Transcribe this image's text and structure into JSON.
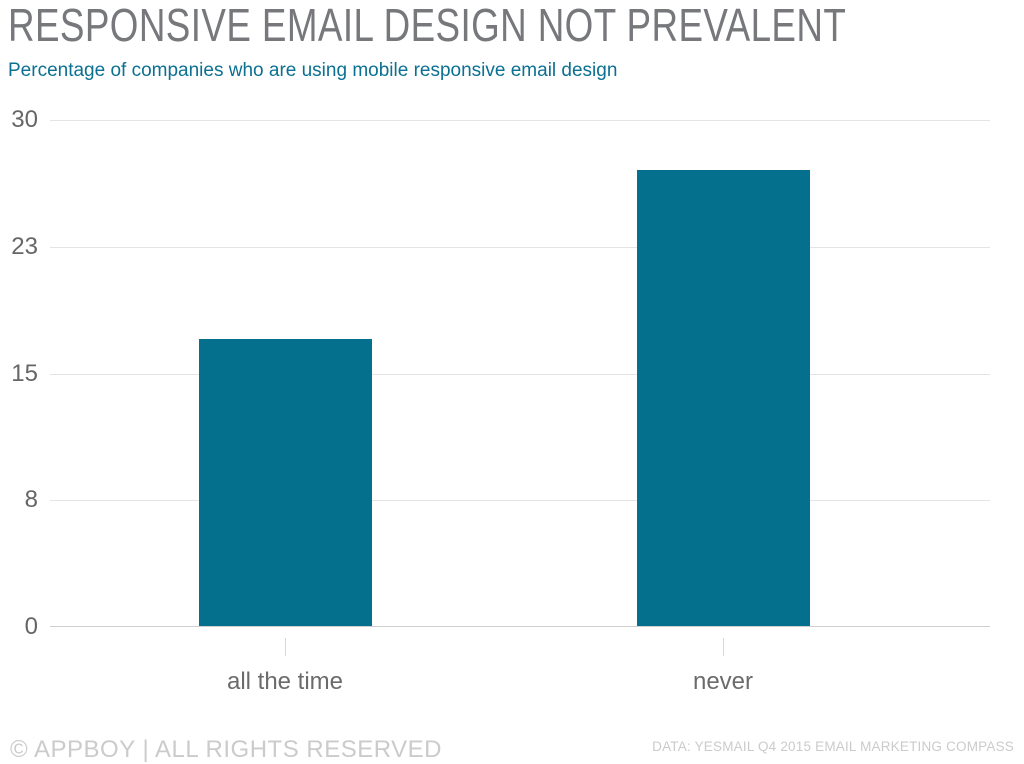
{
  "header": {
    "title": "RESPONSIVE EMAIL DESIGN NOT PREVALENT",
    "subtitle": "Percentage of companies who are using mobile responsive email design"
  },
  "footer": {
    "left": "© APPBOY | ALL RIGHTS RESERVED",
    "right": "DATA: YESMAIL Q4 2015 EMAIL MARKETING COMPASS"
  },
  "colors": {
    "title": "#77787B",
    "subtitle": "#0B7092",
    "bar": "#05708E",
    "axis_label": "#666666",
    "category_label": "#6B6B6B",
    "gridline": "#E4E4E4",
    "baseline": "#CFCFCF",
    "footer": "#CBCBCB"
  },
  "chart_data": {
    "type": "bar",
    "title": "RESPONSIVE EMAIL DESIGN NOT PREVALENT",
    "subtitle": "Percentage of companies who are using mobile responsive email design",
    "categories": [
      "all the time",
      "never"
    ],
    "values": [
      17,
      27
    ],
    "xlabel": "",
    "ylabel": "",
    "ylim": [
      0,
      30
    ],
    "yticks": [
      {
        "pos": 0,
        "label": "0"
      },
      {
        "pos": 7.5,
        "label": "8"
      },
      {
        "pos": 15,
        "label": "15"
      },
      {
        "pos": 22.5,
        "label": "23"
      },
      {
        "pos": 30,
        "label": "30"
      }
    ],
    "grid": true,
    "legend": false,
    "bar_color": "#05708E"
  }
}
